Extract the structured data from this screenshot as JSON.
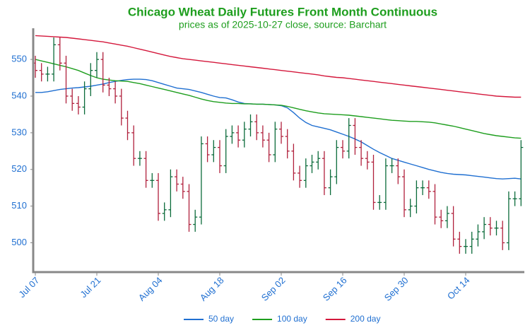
{
  "chart_data": {
    "type": "ohlc",
    "title": "Chicago Wheat Daily Futures Front Month Continuous",
    "subtitle": "prices as of 2025-10-27 close, source: Barchart",
    "categories": [
      "Jul 07",
      null,
      null,
      null,
      null,
      null,
      null,
      null,
      null,
      null,
      "Jul 21",
      null,
      null,
      null,
      null,
      null,
      null,
      null,
      null,
      null,
      "Aug 04",
      null,
      null,
      null,
      null,
      null,
      null,
      null,
      null,
      null,
      "Aug 18",
      null,
      null,
      null,
      null,
      null,
      null,
      null,
      null,
      null,
      "Sep 02",
      null,
      null,
      null,
      null,
      null,
      null,
      null,
      null,
      null,
      "Sep 16",
      null,
      null,
      null,
      null,
      null,
      null,
      null,
      null,
      null,
      "Sep 30",
      null,
      null,
      null,
      null,
      null,
      null,
      null,
      null,
      null,
      "Oct 14",
      null,
      null,
      null,
      null,
      null,
      null,
      null,
      null,
      null
    ],
    "ohlc": {
      "open": [
        549,
        547,
        546,
        546,
        554,
        549,
        540,
        538,
        537,
        542,
        547,
        550,
        543,
        542,
        540,
        534,
        530,
        523,
        523,
        517,
        517,
        508,
        509,
        518,
        516,
        514,
        505,
        507,
        527,
        524,
        526,
        521,
        529,
        530,
        528,
        531,
        533,
        530,
        528,
        524,
        531,
        529,
        525,
        519,
        517,
        521,
        522,
        523,
        515,
        518,
        526,
        525,
        532,
        526,
        523,
        522,
        511,
        511,
        521,
        521,
        518,
        509,
        510,
        515,
        515,
        514,
        507,
        506,
        508,
        501,
        499,
        499,
        501,
        503,
        505,
        504,
        504,
        500,
        512,
        512
      ],
      "high": [
        551,
        549,
        548,
        556,
        556,
        551,
        542,
        540,
        544,
        549,
        552,
        552,
        545,
        544,
        542,
        536,
        532,
        525,
        525,
        519,
        519,
        511,
        520,
        520,
        518,
        516,
        509,
        529,
        529,
        528,
        528,
        531,
        532,
        532,
        533,
        535,
        535,
        532,
        530,
        533,
        533,
        531,
        527,
        521,
        523,
        524,
        525,
        525,
        520,
        528,
        528,
        534,
        534,
        528,
        525,
        524,
        513,
        523,
        523,
        523,
        520,
        512,
        517,
        517,
        517,
        516,
        509,
        510,
        510,
        503,
        501,
        503,
        505,
        507,
        507,
        506,
        506,
        514,
        514,
        528
      ],
      "low": [
        545,
        544,
        544,
        544,
        547,
        538,
        536,
        535,
        535,
        540,
        545,
        541,
        540,
        538,
        532,
        528,
        521,
        521,
        515,
        515,
        506,
        506,
        507,
        514,
        512,
        503,
        503,
        505,
        522,
        522,
        519,
        519,
        527,
        526,
        526,
        529,
        528,
        526,
        522,
        522,
        527,
        523,
        517,
        515,
        515,
        519,
        520,
        513,
        513,
        516,
        523,
        523,
        524,
        521,
        520,
        509,
        509,
        509,
        519,
        516,
        507,
        507,
        508,
        513,
        512,
        505,
        504,
        504,
        499,
        497,
        497,
        497,
        499,
        501,
        502,
        502,
        498,
        498,
        510,
        510
      ],
      "close": [
        547,
        546,
        546,
        554,
        549,
        540,
        538,
        537,
        542,
        547,
        550,
        543,
        542,
        540,
        534,
        530,
        523,
        523,
        517,
        517,
        508,
        509,
        518,
        516,
        514,
        505,
        507,
        527,
        524,
        526,
        521,
        529,
        530,
        528,
        531,
        533,
        530,
        528,
        524,
        531,
        529,
        525,
        519,
        517,
        521,
        522,
        523,
        515,
        518,
        526,
        525,
        532,
        526,
        523,
        522,
        511,
        511,
        521,
        521,
        518,
        509,
        510,
        515,
        515,
        514,
        507,
        506,
        508,
        501,
        499,
        499,
        501,
        503,
        505,
        504,
        504,
        500,
        512,
        512,
        526
      ]
    },
    "up_color": "#0b6b3a",
    "down_color": "#b0203c",
    "series": [
      {
        "name": "50 day",
        "color": "#1f6fd1",
        "values": [
          541,
          541,
          541.2,
          541.5,
          541.8,
          542,
          542.2,
          542.3,
          542.5,
          542.7,
          543,
          543.3,
          543.7,
          544,
          544.3,
          544.5,
          544.6,
          544.6,
          544.5,
          544.2,
          543.7,
          543.2,
          542.7,
          542.2,
          542,
          541.8,
          541.4,
          541,
          540.5,
          540,
          539.6,
          539.5,
          539,
          538.4,
          538,
          537.9,
          537.8,
          537.8,
          537.7,
          537.6,
          537.4,
          536.8,
          535.5,
          534,
          532.8,
          532,
          531.6,
          531.2,
          530.8,
          530.2,
          529.6,
          529,
          528.3,
          527.5,
          526.5,
          525.5,
          524.6,
          523.8,
          523,
          522.5,
          522,
          521.5,
          521,
          520.5,
          520,
          519.6,
          519.2,
          518.9,
          518.7,
          518.6,
          518.5,
          518.3,
          518.1,
          517.9,
          517.7,
          517.5,
          517.4,
          517.5,
          517.6,
          517.4
        ]
      },
      {
        "name": "100 day",
        "color": "#1e9e1e",
        "values": [
          550,
          549.6,
          549.2,
          548.8,
          548.4,
          548,
          547.5,
          547,
          546.3,
          545.6,
          545,
          544.6,
          544.4,
          544.2,
          544.1,
          544,
          543.7,
          543.4,
          543,
          542.6,
          542.2,
          541.8,
          541.4,
          541,
          540.6,
          540.2,
          539.7,
          539.2,
          538.8,
          538.5,
          538.3,
          538.1,
          538,
          538,
          537.9,
          537.9,
          537.8,
          537.8,
          537.7,
          537.6,
          537.5,
          537.2,
          536.8,
          536.4,
          536,
          535.7,
          535.4,
          535.2,
          535.1,
          535,
          534.9,
          534.8,
          534.6,
          534.4,
          534.2,
          534,
          533.8,
          533.6,
          533.4,
          533.3,
          533.2,
          533.1,
          533.1,
          533,
          532.9,
          532.7,
          532.4,
          532.1,
          531.8,
          531.4,
          531,
          530.6,
          530.2,
          529.8,
          529.5,
          529.2,
          529,
          528.8,
          528.6,
          528.5
        ]
      },
      {
        "name": "200 day",
        "color": "#d4183c",
        "values": [
          556.5,
          556.4,
          556.3,
          556.2,
          556.1,
          556,
          555.8,
          555.6,
          555.4,
          555.2,
          555,
          554.8,
          554.5,
          554.2,
          553.9,
          553.6,
          553.2,
          552.8,
          552.4,
          552,
          551.6,
          551.2,
          550.8,
          550.5,
          550.2,
          550,
          549.8,
          549.6,
          549.4,
          549.2,
          549,
          548.8,
          548.6,
          548.4,
          548.2,
          548,
          547.8,
          547.6,
          547.4,
          547.2,
          547,
          546.8,
          546.6,
          546.4,
          546.2,
          546,
          545.8,
          545.5,
          545.3,
          545.1,
          545,
          544.8,
          544.6,
          544.4,
          544.2,
          544,
          543.8,
          543.6,
          543.4,
          543.2,
          543,
          542.8,
          542.6,
          542.4,
          542.2,
          542,
          541.8,
          541.6,
          541.4,
          541.2,
          541,
          540.8,
          540.6,
          540.4,
          540.2,
          540,
          539.9,
          539.8,
          539.7,
          539.7
        ]
      }
    ],
    "ylim": [
      492,
      558.5
    ],
    "yticks": [
      500,
      510,
      520,
      530,
      540,
      550
    ],
    "title_color": "#1e9e1e",
    "tick_color": "#1f6fd1",
    "axis_color": "#888888"
  }
}
